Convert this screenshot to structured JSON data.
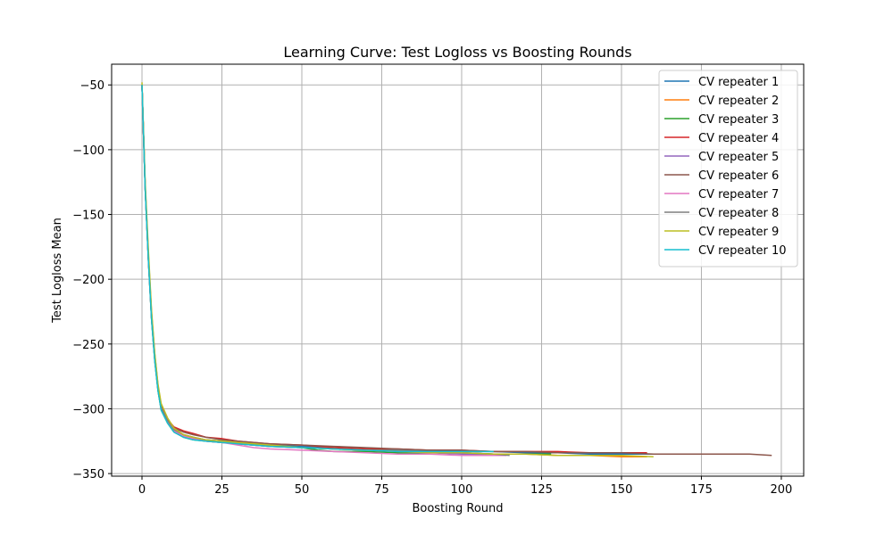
{
  "chart_data": {
    "type": "line",
    "title": "Learning Curve: Test Logloss vs Boosting Rounds",
    "xlabel": "Boosting Round",
    "ylabel": "Test Logloss Mean",
    "xlim": [
      -9.5,
      207
    ],
    "ylim": [
      -352,
      -34
    ],
    "xticks": [
      0,
      25,
      50,
      75,
      100,
      125,
      150,
      175,
      200
    ],
    "yticks": [
      -50,
      -100,
      -150,
      -200,
      -250,
      -300,
      -350
    ],
    "grid": true,
    "legend_position": "top-right",
    "series": [
      {
        "name": "CV repeater 1",
        "color": "#1f77b4",
        "x": [
          0,
          1,
          2,
          3,
          4,
          5,
          6,
          8,
          10,
          13,
          16,
          20,
          25,
          30,
          40,
          50,
          60,
          70,
          80,
          90,
          100,
          110,
          120,
          130,
          140,
          150,
          160,
          165
        ],
        "y": [
          -50,
          -130,
          -185,
          -230,
          -262,
          -285,
          -300,
          -309,
          -316,
          -320,
          -322,
          -324,
          -325,
          -326,
          -328,
          -329,
          -330,
          -331,
          -332,
          -332,
          -333,
          -333,
          -334,
          -334,
          -335,
          -335,
          -335,
          -335
        ]
      },
      {
        "name": "CV repeater 2",
        "color": "#ff7f0e",
        "x": [
          0,
          1,
          2,
          3,
          4,
          5,
          6,
          8,
          10,
          13,
          16,
          20,
          25,
          30,
          40,
          50,
          60,
          70,
          80,
          90,
          100,
          110,
          120,
          130,
          140,
          150,
          158
        ],
        "y": [
          -50,
          -130,
          -185,
          -230,
          -262,
          -285,
          -300,
          -310,
          -317,
          -321,
          -323,
          -325,
          -326,
          -327,
          -329,
          -330,
          -331,
          -332,
          -333,
          -334,
          -334,
          -335,
          -335,
          -336,
          -336,
          -337,
          -337
        ]
      },
      {
        "name": "CV repeater 3",
        "color": "#2ca02c",
        "x": [
          0,
          1,
          2,
          3,
          4,
          5,
          6,
          8,
          10,
          13,
          16,
          20,
          25,
          30,
          40,
          50,
          55,
          60,
          70,
          80,
          90,
          100,
          110,
          120,
          128
        ],
        "y": [
          -50,
          -130,
          -186,
          -231,
          -263,
          -286,
          -301,
          -311,
          -318,
          -322,
          -324,
          -325,
          -326,
          -327,
          -329,
          -330,
          -332,
          -333,
          -333,
          -334,
          -334,
          -334,
          -335,
          -335,
          -335
        ]
      },
      {
        "name": "CV repeater 4",
        "color": "#d62728",
        "x": [
          0,
          1,
          2,
          3,
          4,
          5,
          6,
          8,
          10,
          13,
          16,
          20,
          25,
          30,
          40,
          50,
          60,
          70,
          80,
          90,
          100,
          110,
          120,
          130,
          140,
          150,
          158
        ],
        "y": [
          -50,
          -128,
          -182,
          -226,
          -258,
          -282,
          -298,
          -308,
          -314,
          -317,
          -319,
          -322,
          -323,
          -325,
          -327,
          -328,
          -330,
          -331,
          -331,
          -332,
          -332,
          -333,
          -333,
          -333,
          -334,
          -334,
          -334
        ]
      },
      {
        "name": "CV repeater 5",
        "color": "#9467bd",
        "x": [
          0,
          1,
          2,
          3,
          4,
          5,
          6,
          8,
          10,
          13,
          16,
          20,
          25,
          30,
          40,
          50,
          60,
          70,
          80,
          90,
          100,
          108
        ],
        "y": [
          -50,
          -130,
          -185,
          -230,
          -262,
          -285,
          -300,
          -310,
          -317,
          -321,
          -323,
          -325,
          -326,
          -327,
          -329,
          -330,
          -331,
          -332,
          -333,
          -334,
          -335,
          -335
        ]
      },
      {
        "name": "CV repeater 6",
        "color": "#8c564b",
        "x": [
          0,
          1,
          2,
          3,
          4,
          5,
          6,
          8,
          10,
          13,
          16,
          20,
          25,
          30,
          40,
          50,
          60,
          70,
          80,
          90,
          100,
          110,
          120,
          130,
          140,
          150,
          160,
          170,
          180,
          190,
          197
        ],
        "y": [
          -50,
          -129,
          -184,
          -228,
          -260,
          -284,
          -299,
          -309,
          -315,
          -318,
          -320,
          -322,
          -324,
          -325,
          -327,
          -328,
          -329,
          -330,
          -331,
          -332,
          -332,
          -333,
          -333,
          -334,
          -334,
          -334,
          -335,
          -335,
          -335,
          -335,
          -336
        ]
      },
      {
        "name": "CV repeater 7",
        "color": "#e377c2",
        "x": [
          0,
          1,
          2,
          3,
          4,
          5,
          6,
          8,
          10,
          13,
          16,
          20,
          25,
          30,
          35,
          40,
          50,
          60,
          70,
          80,
          90,
          100,
          108,
          114
        ],
        "y": [
          -50,
          -130,
          -185,
          -230,
          -262,
          -285,
          -300,
          -310,
          -317,
          -321,
          -323,
          -325,
          -326,
          -328,
          -330,
          -331,
          -332,
          -333,
          -334,
          -335,
          -335,
          -336,
          -336,
          -336
        ]
      },
      {
        "name": "CV repeater 8",
        "color": "#7f7f7f",
        "x": [
          0,
          1,
          2,
          3,
          4,
          5,
          6,
          8,
          10,
          13,
          16,
          20,
          25,
          30,
          40,
          50,
          60,
          70,
          80,
          90,
          100,
          110,
          115
        ],
        "y": [
          -50,
          -129,
          -184,
          -229,
          -261,
          -284,
          -299,
          -309,
          -316,
          -320,
          -322,
          -324,
          -325,
          -326,
          -328,
          -330,
          -331,
          -332,
          -332,
          -333,
          -334,
          -335,
          -336
        ]
      },
      {
        "name": "CV repeater 9",
        "color": "#bcbd22",
        "x": [
          0,
          1,
          2,
          3,
          4,
          5,
          6,
          8,
          10,
          13,
          16,
          20,
          25,
          30,
          40,
          50,
          60,
          70,
          80,
          90,
          100,
          110,
          120,
          130,
          140,
          150,
          160
        ],
        "y": [
          -48,
          -125,
          -178,
          -224,
          -257,
          -281,
          -296,
          -307,
          -315,
          -320,
          -322,
          -324,
          -325,
          -326,
          -328,
          -330,
          -331,
          -332,
          -333,
          -334,
          -334,
          -335,
          -335,
          -336,
          -336,
          -336,
          -337
        ]
      },
      {
        "name": "CV repeater 10",
        "color": "#17becf",
        "x": [
          0,
          1,
          2,
          3,
          4,
          5,
          6,
          8,
          10,
          13,
          16,
          20,
          25,
          30,
          40,
          50,
          60,
          70,
          80,
          90,
          100,
          110
        ],
        "y": [
          -50,
          -131,
          -186,
          -231,
          -263,
          -286,
          -301,
          -311,
          -318,
          -322,
          -324,
          -325,
          -326,
          -327,
          -329,
          -330,
          -331,
          -332,
          -333,
          -333,
          -333,
          -333
        ]
      }
    ]
  }
}
